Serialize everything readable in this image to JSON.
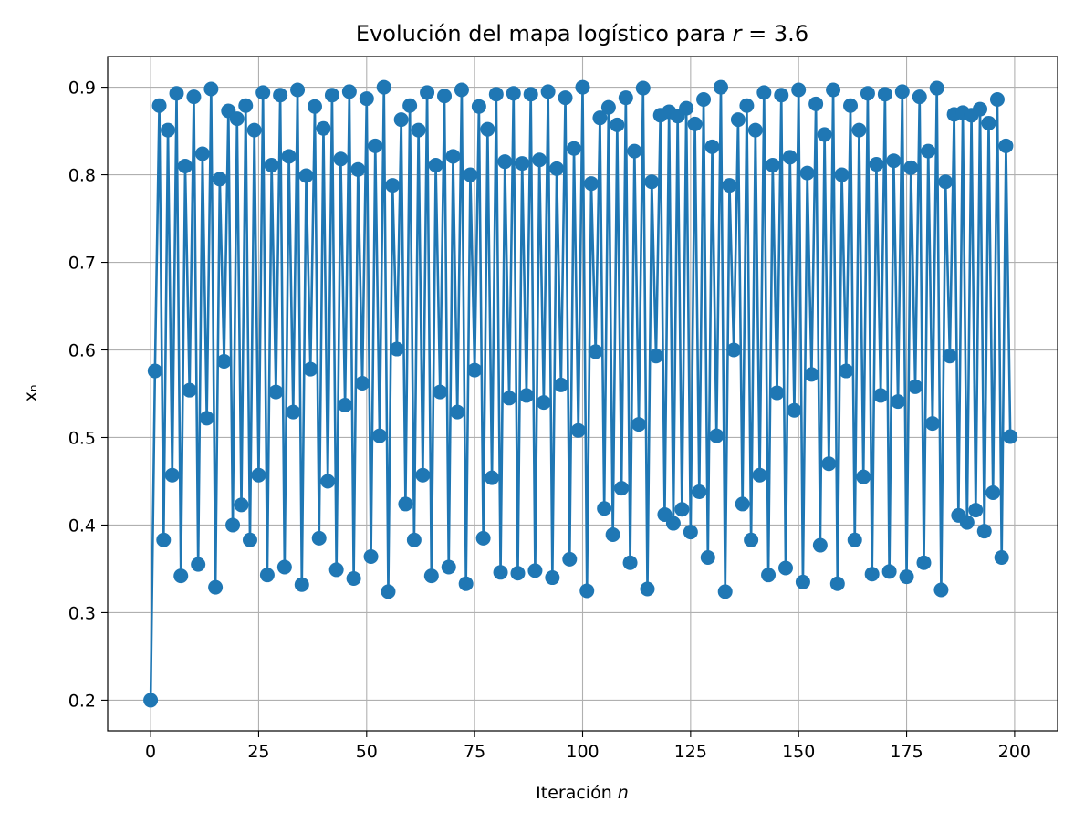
{
  "chart_data": {
    "type": "line",
    "title_prefix": "Evolución del mapa logístico para ",
    "title_var": "r",
    "title_suffix": " = 3.6",
    "xlabel_prefix": "Iteración ",
    "xlabel_var": "n",
    "ylabel": "xₙ",
    "marker": "circle",
    "grid": true,
    "legend": "none",
    "color": "#1f77b4",
    "xlim": [
      -9.95,
      209.95
    ],
    "ylim": [
      0.165,
      0.935
    ],
    "x_ticks": [
      0,
      25,
      50,
      75,
      100,
      125,
      150,
      175,
      200
    ],
    "y_ticks": [
      0.2,
      0.3,
      0.4,
      0.5,
      0.6,
      0.7,
      0.8,
      0.9
    ],
    "x_start": 0,
    "values": [
      0.2,
      0.576,
      0.879,
      0.383,
      0.851,
      0.457,
      0.893,
      0.342,
      0.81,
      0.554,
      0.889,
      0.355,
      0.824,
      0.522,
      0.898,
      0.329,
      0.795,
      0.587,
      0.873,
      0.4,
      0.864,
      0.423,
      0.879,
      0.383,
      0.851,
      0.457,
      0.894,
      0.343,
      0.811,
      0.552,
      0.891,
      0.352,
      0.821,
      0.529,
      0.897,
      0.332,
      0.799,
      0.578,
      0.878,
      0.385,
      0.853,
      0.45,
      0.891,
      0.349,
      0.818,
      0.537,
      0.895,
      0.339,
      0.806,
      0.562,
      0.887,
      0.364,
      0.833,
      0.502,
      0.9,
      0.324,
      0.788,
      0.601,
      0.863,
      0.424,
      0.879,
      0.383,
      0.851,
      0.457,
      0.894,
      0.342,
      0.811,
      0.552,
      0.89,
      0.352,
      0.821,
      0.529,
      0.897,
      0.333,
      0.8,
      0.577,
      0.878,
      0.385,
      0.852,
      0.454,
      0.892,
      0.346,
      0.815,
      0.545,
      0.893,
      0.345,
      0.813,
      0.548,
      0.892,
      0.348,
      0.817,
      0.54,
      0.895,
      0.34,
      0.807,
      0.56,
      0.888,
      0.361,
      0.83,
      0.508,
      0.9,
      0.325,
      0.79,
      0.598,
      0.865,
      0.419,
      0.877,
      0.389,
      0.857,
      0.442,
      0.888,
      0.357,
      0.827,
      0.515,
      0.899,
      0.327,
      0.792,
      0.593,
      0.868,
      0.412,
      0.872,
      0.402,
      0.867,
      0.418,
      0.876,
      0.392,
      0.858,
      0.438,
      0.886,
      0.363,
      0.832,
      0.502,
      0.9,
      0.324,
      0.788,
      0.6,
      0.863,
      0.424,
      0.879,
      0.383,
      0.851,
      0.457,
      0.894,
      0.343,
      0.811,
      0.551,
      0.891,
      0.351,
      0.82,
      0.531,
      0.897,
      0.335,
      0.802,
      0.572,
      0.881,
      0.377,
      0.846,
      0.47,
      0.897,
      0.333,
      0.8,
      0.576,
      0.879,
      0.383,
      0.851,
      0.455,
      0.893,
      0.344,
      0.812,
      0.548,
      0.892,
      0.347,
      0.816,
      0.541,
      0.895,
      0.341,
      0.808,
      0.558,
      0.889,
      0.357,
      0.827,
      0.516,
      0.899,
      0.326,
      0.792,
      0.593,
      0.869,
      0.411,
      0.871,
      0.403,
      0.868,
      0.417,
      0.875,
      0.393,
      0.859,
      0.437,
      0.886,
      0.363,
      0.833,
      0.501
    ]
  }
}
